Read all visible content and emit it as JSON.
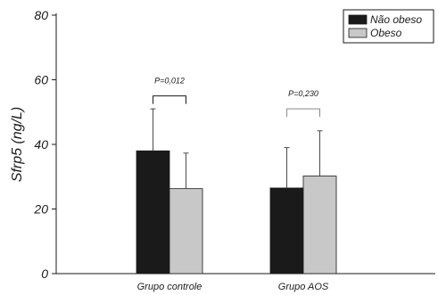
{
  "chart_data": {
    "type": "bar",
    "categories": [
      "Grupo controle",
      "Grupo AOS"
    ],
    "series": [
      {
        "name": "Não obeso",
        "values": [
          38.0,
          26.5
        ],
        "errors": [
          13.0,
          12.5
        ],
        "color": "#1a1a1a"
      },
      {
        "name": "Obeso",
        "values": [
          26.3,
          30.2
        ],
        "errors": [
          11.0,
          14.0
        ],
        "color": "#c8c8c8"
      }
    ],
    "xlabel": "",
    "ylabel": "Sfrp5 (ng/L)",
    "ylim": [
      0,
      80
    ],
    "yticks": [
      0,
      20,
      40,
      60,
      80
    ],
    "ytick_labels": [
      "0",
      "20",
      "40",
      "60",
      "80"
    ],
    "legend_position": "top-right",
    "grid": false,
    "annotations": [
      {
        "text": "P=0,012",
        "category": "Grupo controle",
        "bracket_y": 55,
        "bracket_style": "solid"
      },
      {
        "text": "P=0,230",
        "category": "Grupo AOS",
        "bracket_y": 51,
        "bracket_style": "gray"
      }
    ]
  }
}
